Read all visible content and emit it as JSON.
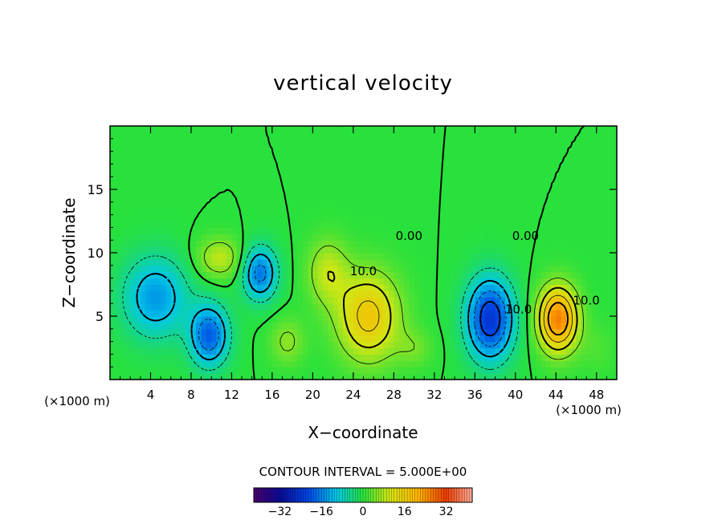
{
  "chart_data": {
    "type": "heatmap",
    "title": "vertical velocity",
    "xlabel": "X−coordinate",
    "ylabel": "Z−coordinate",
    "x_unit_left": "(×1000 m)",
    "x_unit_right": "(×1000 m)",
    "xlim": [
      0,
      50
    ],
    "ylim": [
      0,
      20
    ],
    "x_ticks": [
      "4",
      "8",
      "12",
      "16",
      "20",
      "24",
      "28",
      "32",
      "36",
      "40",
      "44",
      "48"
    ],
    "x_tick_values": [
      4,
      8,
      12,
      16,
      20,
      24,
      28,
      32,
      36,
      40,
      44,
      48
    ],
    "y_ticks": [
      "5",
      "10",
      "15"
    ],
    "y_tick_values": [
      5,
      10,
      15
    ],
    "contour_interval_text": "CONTOUR INTERVAL = 5.000E+00",
    "contour_interval": 5,
    "contour_labels": [
      {
        "text": "10.0",
        "x": 25,
        "y": 8.5
      },
      {
        "text": "0.00",
        "x": 29.5,
        "y": 11.3
      },
      {
        "text": "0.00",
        "x": 41,
        "y": 11.3
      },
      {
        "text": "10.0",
        "x": 47,
        "y": 6.2
      },
      {
        "text": "10.0",
        "x": 40.3,
        "y": 5.5
      }
    ],
    "colorbar": {
      "min": -42,
      "max": 42,
      "ticks": [
        "−32",
        "−16",
        "0",
        "16",
        "32"
      ],
      "tick_values": [
        -32,
        -16,
        0,
        16,
        32
      ]
    },
    "features": [
      {
        "x": 4.5,
        "z": 6.5,
        "value": -14,
        "sx": 3.2,
        "sz": 3.2
      },
      {
        "x": 9.8,
        "z": 3.5,
        "value": -19,
        "sx": 1.9,
        "sz": 2.4
      },
      {
        "x": 10.8,
        "z": 9.6,
        "value": 9,
        "sx": 2.2,
        "sz": 1.6
      },
      {
        "x": 14.8,
        "z": 8.4,
        "value": -17,
        "sx": 1.7,
        "sz": 2.1
      },
      {
        "x": 17.5,
        "z": 3.0,
        "value": 6,
        "sx": 1.7,
        "sz": 1.8
      },
      {
        "x": 21.5,
        "z": 8.5,
        "value": 9,
        "sx": 2.0,
        "sz": 2.6
      },
      {
        "x": 25.5,
        "z": 5.0,
        "value": 17,
        "sx": 3.0,
        "sz": 3.4
      },
      {
        "x": 30.0,
        "z": 2.5,
        "value": 4,
        "sx": 1.8,
        "sz": 1.5
      },
      {
        "x": 37.5,
        "z": 4.8,
        "value": -24,
        "sx": 2.3,
        "sz": 3.2
      },
      {
        "x": 44.2,
        "z": 4.8,
        "value": 26,
        "sx": 1.9,
        "sz": 2.5
      },
      {
        "x": 48.0,
        "z": 2.5,
        "value": 2,
        "sx": 2.0,
        "sz": 2.0
      }
    ]
  }
}
